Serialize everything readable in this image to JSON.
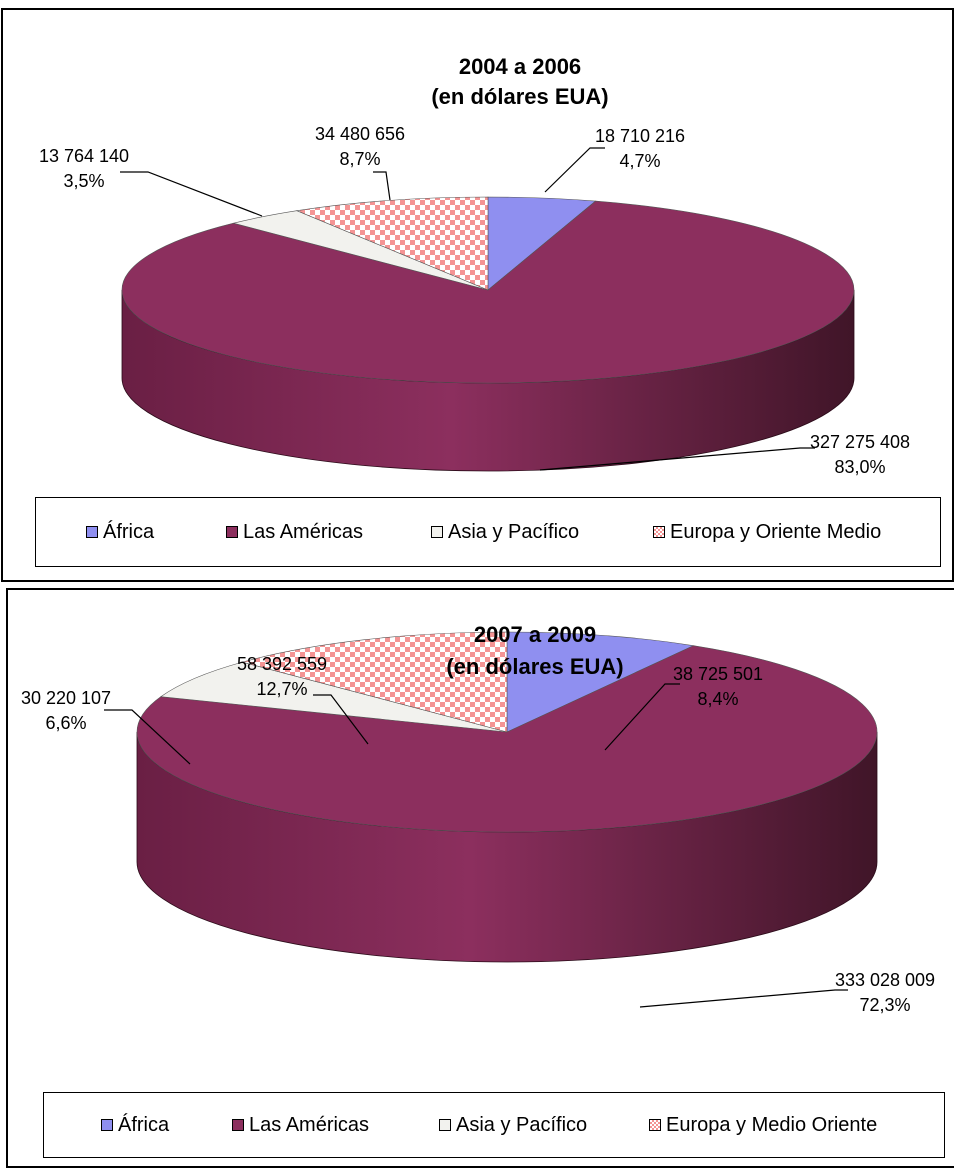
{
  "colors": {
    "africa": "#8f8ff0",
    "americas": "#8c2f5e",
    "americas_dark": "#401528",
    "asia": "#f2f2ee",
    "europe_a": "#f49494",
    "europe_b": "#ffffff"
  },
  "chart_data": [
    {
      "type": "pie",
      "title": [
        "2004 a 2006",
        "(en dólares EUA)"
      ],
      "categories": [
        "África",
        "Las Américas",
        "Asia y Pacífico",
        "Europa y Oriente  Medio"
      ],
      "values": [
        18710216,
        327275408,
        13764140,
        34480656
      ],
      "value_labels": [
        "18 710 216",
        "327 275 408",
        "13 764 140",
        "34 480 656"
      ],
      "percent_labels": [
        "4,7%",
        "83,0%",
        "3,5%",
        "8,7%"
      ],
      "legend_position": "bottom"
    },
    {
      "type": "pie",
      "title": [
        "2007 a 2009",
        "(en dólares EUA)"
      ],
      "categories": [
        "África",
        "Las Américas",
        "Asia y Pacífico",
        "Europa y Medio Oriente"
      ],
      "values": [
        38725501,
        333028009,
        30220107,
        58392559
      ],
      "value_labels": [
        "38 725 501",
        "333 028 009",
        "30 220 107",
        "58 392 559"
      ],
      "percent_labels": [
        "8,4%",
        "72,3%",
        "6,6%",
        "12,7%"
      ],
      "legend_position": "bottom"
    }
  ]
}
